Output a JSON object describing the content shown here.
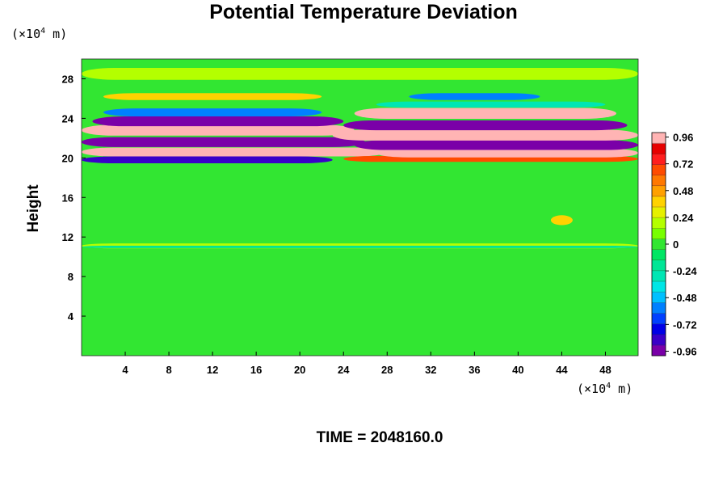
{
  "chart_data": {
    "type": "heatmap",
    "title": "Potential Temperature Deviation",
    "ylabel": "Height",
    "xlabel": "",
    "unit_base": "(×10",
    "unit_exp": "4",
    "unit_tail": " m)",
    "footer": "TIME = 2048160.0",
    "x_ticks": [
      "4",
      "8",
      "12",
      "16",
      "20",
      "24",
      "28",
      "32",
      "36",
      "40",
      "44",
      "48"
    ],
    "y_ticks": [
      "4",
      "8",
      "12",
      "16",
      "20",
      "24",
      "28"
    ],
    "xlim": [
      0,
      51
    ],
    "ylim": [
      0,
      30
    ],
    "colorbar": {
      "ticks": [
        "0.96",
        "0.72",
        "0.48",
        "0.24",
        "0",
        "-0.24",
        "-0.48",
        "-0.72",
        "-0.96"
      ],
      "range": [
        -1.0,
        1.0
      ],
      "colors": [
        "#7a00a8",
        "#3a00c8",
        "#0000e6",
        "#0040ff",
        "#0080ff",
        "#00c0ff",
        "#00e6e6",
        "#00e6b4",
        "#00e696",
        "#00e664",
        "#32e632",
        "#78ff00",
        "#b4ff00",
        "#e6f000",
        "#ffd200",
        "#ffa000",
        "#ff7800",
        "#ff4b00",
        "#ff1e1e",
        "#e60000",
        "#ffb4b4"
      ]
    },
    "background_value": 0,
    "bands": [
      {
        "x0": 0,
        "x1": 51,
        "y": 11.1,
        "value": 0.22,
        "half_height": 0.25
      },
      {
        "x0": 0,
        "x1": 51,
        "y": 11.0,
        "value": -0.15,
        "half_height": 0.12
      },
      {
        "x0": 0,
        "x1": 23,
        "y": 19.8,
        "value": -0.9,
        "half_height": 0.35
      },
      {
        "x0": 0,
        "x1": 28,
        "y": 20.6,
        "value": 0.96,
        "half_height": 0.45
      },
      {
        "x0": 0,
        "x1": 26,
        "y": 21.6,
        "value": -0.96,
        "half_height": 0.5
      },
      {
        "x0": 0,
        "x1": 25,
        "y": 22.8,
        "value": 0.96,
        "half_height": 0.55
      },
      {
        "x0": 1,
        "x1": 24,
        "y": 23.7,
        "value": -0.96,
        "half_height": 0.5
      },
      {
        "x0": 2,
        "x1": 22,
        "y": 24.6,
        "value": -0.6,
        "half_height": 0.4
      },
      {
        "x0": 2,
        "x1": 22,
        "y": 26.2,
        "value": 0.4,
        "half_height": 0.35
      },
      {
        "x0": 24,
        "x1": 51,
        "y": 19.9,
        "value": 0.7,
        "half_height": 0.3
      },
      {
        "x0": 27,
        "x1": 51,
        "y": 20.5,
        "value": 0.96,
        "half_height": 0.45
      },
      {
        "x0": 25,
        "x1": 51,
        "y": 21.3,
        "value": -0.96,
        "half_height": 0.5
      },
      {
        "x0": 23,
        "x1": 51,
        "y": 22.3,
        "value": 0.96,
        "half_height": 0.55
      },
      {
        "x0": 24,
        "x1": 50,
        "y": 23.3,
        "value": -0.96,
        "half_height": 0.5
      },
      {
        "x0": 25,
        "x1": 49,
        "y": 24.5,
        "value": 0.96,
        "half_height": 0.55
      },
      {
        "x0": 27,
        "x1": 48,
        "y": 25.4,
        "value": -0.3,
        "half_height": 0.3
      },
      {
        "x0": 30,
        "x1": 42,
        "y": 26.2,
        "value": -0.6,
        "half_height": 0.35
      },
      {
        "x0": 0,
        "x1": 51,
        "y": 28.5,
        "value": 0.15,
        "half_height": 0.6
      },
      {
        "x0": 43,
        "x1": 45,
        "y": 13.7,
        "value": 0.35,
        "half_height": 0.5
      }
    ]
  }
}
